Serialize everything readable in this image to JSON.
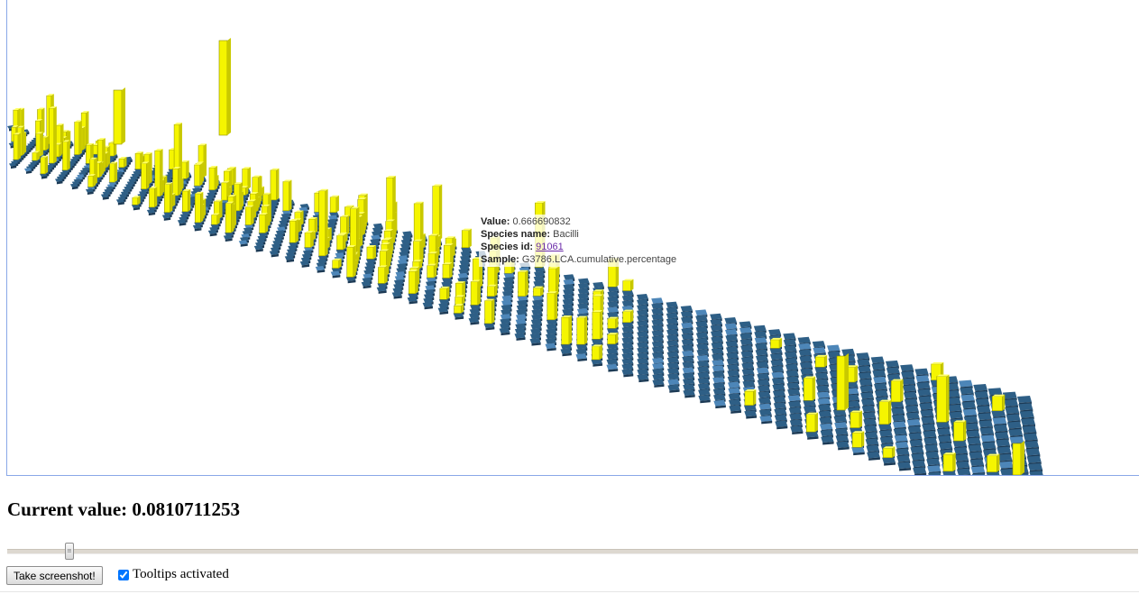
{
  "tooltip": {
    "value_label": "Value:",
    "value": "0.666690832",
    "species_name_label": "Species name:",
    "species_name": "Bacilli",
    "species_id_label": "Species id:",
    "species_id": "91061",
    "sample_label": "Sample:",
    "sample": "G3786.LCA.cumulative.percentage"
  },
  "current_value": "Current value: 0.0810711253",
  "slider": {
    "value_fraction": 0.055,
    "thumb_glyph": "≡"
  },
  "screenshot_button": "Take screenshot!",
  "tooltips_checkbox": {
    "label": "Tooltips activated",
    "checked": true
  },
  "colors": {
    "bar": "#f5f500",
    "bar_dark": "#1a1a00",
    "tile": "#2e5f86",
    "tile_light": "#4d86b8"
  }
}
